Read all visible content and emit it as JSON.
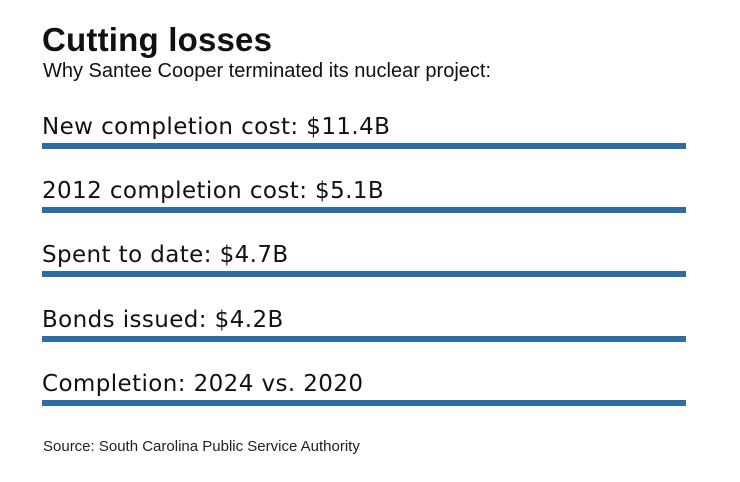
{
  "header": {
    "title": "Cutting losses",
    "subtitle": "Why Santee Cooper terminated its nuclear project:"
  },
  "facts": [
    {
      "text": "New completion cost: $11.4B"
    },
    {
      "text": "2012 completion cost: $5.1B"
    },
    {
      "text": "Spent to date: $4.7B"
    },
    {
      "text": "Bonds issued: $4.2B"
    },
    {
      "text": "Completion: 2024 vs. 2020"
    }
  ],
  "footer": {
    "source": "Source: South Carolina Public Service Authority"
  },
  "colors": {
    "rule": "#2e6da4",
    "text": "#111111",
    "background": "#ffffff"
  }
}
